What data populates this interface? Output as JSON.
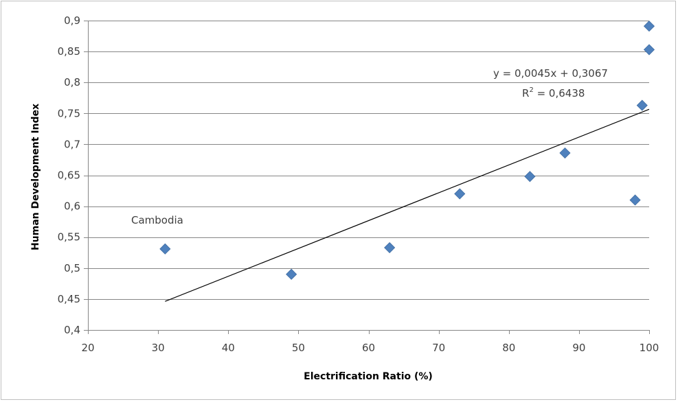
{
  "chart_data": {
    "type": "scatter",
    "xlabel": "Electrification Ratio (%)",
    "ylabel": "Human Development Index",
    "xlim": [
      20,
      100
    ],
    "ylim": [
      0.4,
      0.9
    ],
    "x_ticks": [
      20,
      30,
      40,
      50,
      60,
      70,
      80,
      90,
      100
    ],
    "x_tick_labels": [
      "20",
      "30",
      "40",
      "50",
      "60",
      "70",
      "80",
      "90",
      "100"
    ],
    "y_ticks": [
      0.4,
      0.45,
      0.5,
      0.55,
      0.6,
      0.65,
      0.7,
      0.75,
      0.8,
      0.85,
      0.9
    ],
    "y_tick_labels": [
      "0,4",
      "0,45",
      "0,5",
      "0,55",
      "0,6",
      "0,65",
      "0,7",
      "0,75",
      "0,8",
      "0,85",
      "0,9"
    ],
    "grid": "horizontal",
    "marker_color": "#4f81bd",
    "trendline_color": "#000000",
    "points": [
      {
        "x": 31,
        "y": 0.531
      },
      {
        "x": 49,
        "y": 0.49
      },
      {
        "x": 63,
        "y": 0.533
      },
      {
        "x": 73,
        "y": 0.62
      },
      {
        "x": 83,
        "y": 0.648
      },
      {
        "x": 88,
        "y": 0.686
      },
      {
        "x": 98,
        "y": 0.61
      },
      {
        "x": 99,
        "y": 0.763
      },
      {
        "x": 100,
        "y": 0.853
      },
      {
        "x": 100,
        "y": 0.891
      }
    ],
    "trendline": {
      "slope": 0.0045,
      "intercept": 0.3067,
      "x_start": 31,
      "x_end": 100
    },
    "annotations": {
      "point_label": "Cambodia",
      "equation": "y = 0,0045x + 0,3067",
      "r_squared_prefix": "R",
      "r_squared_sup": "2",
      "r_squared_value": " = 0,6438"
    }
  }
}
